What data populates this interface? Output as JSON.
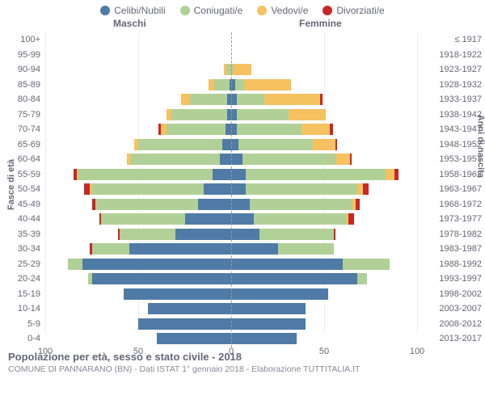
{
  "chart": {
    "type": "population-pyramid",
    "title": "Popolazione per età, sesso e stato civile - 2018",
    "subtitle": "COMUNE DI PANNARANO (BN) - Dati ISTAT 1° gennaio 2018 - Elaborazione TUTTITALIA.IT",
    "header_male": "Maschi",
    "header_female": "Femmine",
    "ylabel_left": "Fasce di età",
    "ylabel_right": "Anni di nascita",
    "xmax": 100,
    "xticks": [
      100,
      50,
      0,
      50,
      100
    ],
    "legend": [
      {
        "label": "Celibi/Nubili",
        "color": "#4f7ba6"
      },
      {
        "label": "Coniugati/e",
        "color": "#b1d097"
      },
      {
        "label": "Vedovi/e",
        "color": "#f5c161"
      },
      {
        "label": "Divorziati/e",
        "color": "#c62828"
      }
    ],
    "colors": {
      "single": "#4f7ba6",
      "married": "#b1d097",
      "widowed": "#f5c161",
      "divorced": "#c62828",
      "grid": "#eeeeee",
      "centerline": "#999999"
    },
    "rows": [
      {
        "age": "100+",
        "birth": "≤ 1917",
        "m": {
          "s": 0,
          "m": 0,
          "w": 0,
          "d": 0
        },
        "f": {
          "s": 0,
          "m": 0,
          "w": 0,
          "d": 0
        }
      },
      {
        "age": "95-99",
        "birth": "1918-1922",
        "m": {
          "s": 0,
          "m": 0,
          "w": 0,
          "d": 0
        },
        "f": {
          "s": 0,
          "m": 0,
          "w": 0,
          "d": 0
        }
      },
      {
        "age": "90-94",
        "birth": "1923-1927",
        "m": {
          "s": 0,
          "m": 2,
          "w": 2,
          "d": 0
        },
        "f": {
          "s": 0,
          "m": 1,
          "w": 10,
          "d": 0
        }
      },
      {
        "age": "85-89",
        "birth": "1928-1932",
        "m": {
          "s": 1,
          "m": 8,
          "w": 3,
          "d": 0
        },
        "f": {
          "s": 2,
          "m": 5,
          "w": 25,
          "d": 0
        }
      },
      {
        "age": "80-84",
        "birth": "1933-1937",
        "m": {
          "s": 2,
          "m": 20,
          "w": 5,
          "d": 0
        },
        "f": {
          "s": 3,
          "m": 15,
          "w": 30,
          "d": 1
        }
      },
      {
        "age": "75-79",
        "birth": "1938-1942",
        "m": {
          "s": 2,
          "m": 30,
          "w": 3,
          "d": 0
        },
        "f": {
          "s": 3,
          "m": 28,
          "w": 20,
          "d": 0
        }
      },
      {
        "age": "70-74",
        "birth": "1943-1947",
        "m": {
          "s": 3,
          "m": 32,
          "w": 3,
          "d": 1
        },
        "f": {
          "s": 3,
          "m": 35,
          "w": 15,
          "d": 2
        }
      },
      {
        "age": "65-69",
        "birth": "1948-1952",
        "m": {
          "s": 5,
          "m": 45,
          "w": 2,
          "d": 0
        },
        "f": {
          "s": 4,
          "m": 40,
          "w": 12,
          "d": 1
        }
      },
      {
        "age": "60-64",
        "birth": "1953-1957",
        "m": {
          "s": 6,
          "m": 48,
          "w": 2,
          "d": 0
        },
        "f": {
          "s": 6,
          "m": 50,
          "w": 8,
          "d": 1
        }
      },
      {
        "age": "55-59",
        "birth": "1958-1962",
        "m": {
          "s": 10,
          "m": 72,
          "w": 1,
          "d": 2
        },
        "f": {
          "s": 8,
          "m": 75,
          "w": 5,
          "d": 2
        }
      },
      {
        "age": "50-54",
        "birth": "1963-1967",
        "m": {
          "s": 15,
          "m": 60,
          "w": 1,
          "d": 3
        },
        "f": {
          "s": 8,
          "m": 60,
          "w": 3,
          "d": 3
        }
      },
      {
        "age": "45-49",
        "birth": "1968-1972",
        "m": {
          "s": 18,
          "m": 55,
          "w": 0,
          "d": 2
        },
        "f": {
          "s": 10,
          "m": 55,
          "w": 2,
          "d": 2
        }
      },
      {
        "age": "40-44",
        "birth": "1973-1977",
        "m": {
          "s": 25,
          "m": 45,
          "w": 0,
          "d": 1
        },
        "f": {
          "s": 12,
          "m": 50,
          "w": 1,
          "d": 3
        }
      },
      {
        "age": "35-39",
        "birth": "1978-1982",
        "m": {
          "s": 30,
          "m": 30,
          "w": 0,
          "d": 1
        },
        "f": {
          "s": 15,
          "m": 40,
          "w": 0,
          "d": 1
        }
      },
      {
        "age": "30-34",
        "birth": "1983-1987",
        "m": {
          "s": 55,
          "m": 20,
          "w": 0,
          "d": 1
        },
        "f": {
          "s": 25,
          "m": 30,
          "w": 0,
          "d": 0
        }
      },
      {
        "age": "25-29",
        "birth": "1988-1992",
        "m": {
          "s": 80,
          "m": 8,
          "w": 0,
          "d": 0
        },
        "f": {
          "s": 60,
          "m": 25,
          "w": 0,
          "d": 0
        }
      },
      {
        "age": "20-24",
        "birth": "1993-1997",
        "m": {
          "s": 75,
          "m": 2,
          "w": 0,
          "d": 0
        },
        "f": {
          "s": 68,
          "m": 5,
          "w": 0,
          "d": 0
        }
      },
      {
        "age": "15-19",
        "birth": "1998-2002",
        "m": {
          "s": 58,
          "m": 0,
          "w": 0,
          "d": 0
        },
        "f": {
          "s": 52,
          "m": 0,
          "w": 0,
          "d": 0
        }
      },
      {
        "age": "10-14",
        "birth": "2003-2007",
        "m": {
          "s": 45,
          "m": 0,
          "w": 0,
          "d": 0
        },
        "f": {
          "s": 40,
          "m": 0,
          "w": 0,
          "d": 0
        }
      },
      {
        "age": "5-9",
        "birth": "2008-2012",
        "m": {
          "s": 50,
          "m": 0,
          "w": 0,
          "d": 0
        },
        "f": {
          "s": 40,
          "m": 0,
          "w": 0,
          "d": 0
        }
      },
      {
        "age": "0-4",
        "birth": "2013-2017",
        "m": {
          "s": 40,
          "m": 0,
          "w": 0,
          "d": 0
        },
        "f": {
          "s": 35,
          "m": 0,
          "w": 0,
          "d": 0
        }
      }
    ]
  }
}
